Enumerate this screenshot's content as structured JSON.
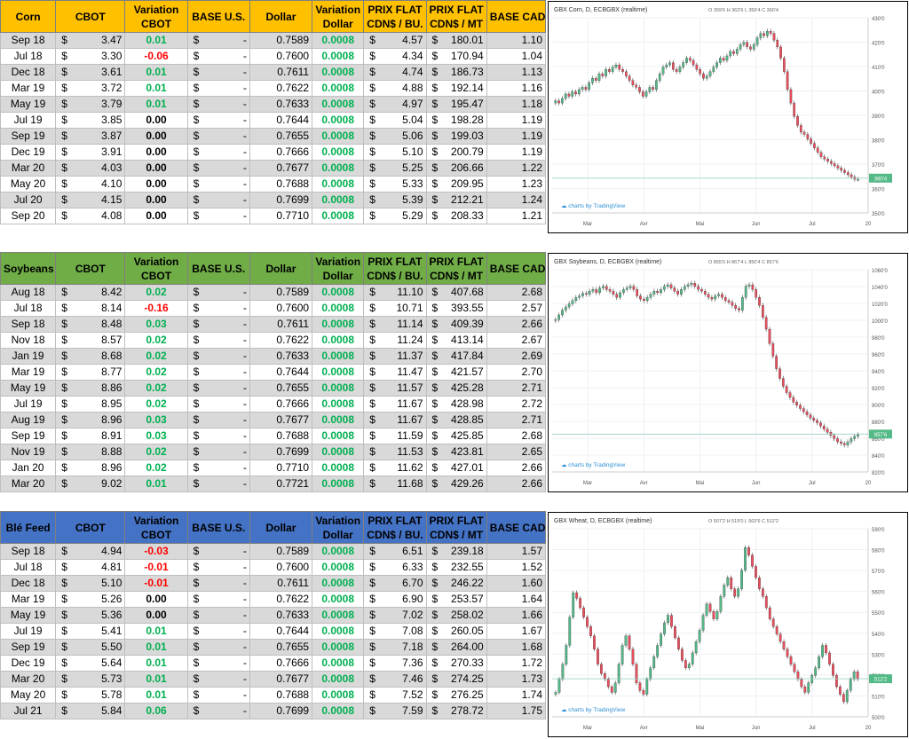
{
  "columns": {
    "cbot": "CBOT",
    "variation_cbot": [
      "Variation",
      "CBOT"
    ],
    "base_us": "BASE U.S.",
    "dollar": "Dollar",
    "variation_dollar": [
      "Variation",
      "Dollar"
    ],
    "prix_flat_bu": [
      "PRIX FLAT",
      "CDN$ / BU."
    ],
    "prix_flat_mt": [
      "PRIX FLAT",
      "CDN$ / MT"
    ],
    "base_cad": "BASE CAD"
  },
  "currency_symbol": "$",
  "dash": "-",
  "sections": [
    {
      "commodity": "Corn",
      "header_color": "#ffc000",
      "rows": [
        [
          "Sep 18",
          "3.47",
          "0.01",
          "0.7589",
          "0.0008",
          "4.57",
          "180.01",
          "1.10"
        ],
        [
          "Jul 18",
          "3.30",
          "-0.06",
          "0.7600",
          "0.0008",
          "4.34",
          "170.94",
          "1.04"
        ],
        [
          "Dec 18",
          "3.61",
          "0.01",
          "0.7611",
          "0.0008",
          "4.74",
          "186.73",
          "1.13"
        ],
        [
          "Mar 19",
          "3.72",
          "0.01",
          "0.7622",
          "0.0008",
          "4.88",
          "192.14",
          "1.16"
        ],
        [
          "May 19",
          "3.79",
          "0.01",
          "0.7633",
          "0.0008",
          "4.97",
          "195.47",
          "1.18"
        ],
        [
          "Jul 19",
          "3.85",
          "0.00",
          "0.7644",
          "0.0008",
          "5.04",
          "198.28",
          "1.19"
        ],
        [
          "Sep 19",
          "3.87",
          "0.00",
          "0.7655",
          "0.0008",
          "5.06",
          "199.03",
          "1.19"
        ],
        [
          "Dec 19",
          "3.91",
          "0.00",
          "0.7666",
          "0.0008",
          "5.10",
          "200.79",
          "1.19"
        ],
        [
          "Mar 20",
          "4.03",
          "0.00",
          "0.7677",
          "0.0008",
          "5.25",
          "206.66",
          "1.22"
        ],
        [
          "May 20",
          "4.10",
          "0.00",
          "0.7688",
          "0.0008",
          "5.33",
          "209.95",
          "1.23"
        ],
        [
          "Jul 20",
          "4.15",
          "0.00",
          "0.7699",
          "0.0008",
          "5.39",
          "212.21",
          "1.24"
        ],
        [
          "Sep 20",
          "4.08",
          "0.00",
          "0.7710",
          "0.0008",
          "5.29",
          "208.33",
          "1.21"
        ]
      ],
      "chart": {
        "title": "GBX Corn, D, ECBGBX (realtime)",
        "ohlc": "O 359'6 H 362'6 L 359'4 C 360'4",
        "y_ticks": [
          "430'0",
          "420'0",
          "410'0",
          "400'0",
          "390'0",
          "380'0",
          "370'0",
          "360'0",
          "350'0"
        ],
        "last_label": "360'4",
        "x_ticks": [
          "Mar",
          "Avr",
          "Mai",
          "Jun",
          "Jul",
          "20"
        ],
        "watermark": "charts by TradingView",
        "ylim": [
          345,
          432
        ],
        "last": 360.5,
        "closes": [
          395,
          394,
          396,
          398,
          397,
          399,
          398,
          400,
          401,
          400,
          403,
          405,
          404,
          407,
          406,
          409,
          408,
          410,
          411,
          409,
          408,
          406,
          404,
          402,
          401,
          399,
          397,
          399,
          401,
          400,
          404,
          407,
          410,
          411,
          412,
          409,
          408,
          410,
          412,
          414,
          413,
          411,
          409,
          407,
          405,
          406,
          408,
          410,
          412,
          414,
          413,
          415,
          417,
          416,
          418,
          420,
          421,
          419,
          418,
          420,
          423,
          425,
          424,
          426,
          425,
          422,
          419,
          414,
          408,
          400,
          394,
          388,
          384,
          381,
          380,
          378,
          376,
          374,
          372,
          370,
          369,
          368,
          367,
          366,
          365,
          364,
          363,
          362,
          361,
          360,
          360
        ]
      }
    },
    {
      "commodity": "Soybeans",
      "header_color": "#70ad47",
      "rows": [
        [
          "Aug 18",
          "8.42",
          "0.02",
          "0.7589",
          "0.0008",
          "11.10",
          "407.68",
          "2.68"
        ],
        [
          "Jul 18",
          "8.14",
          "-0.16",
          "0.7600",
          "0.0008",
          "10.71",
          "393.55",
          "2.57"
        ],
        [
          "Sep 18",
          "8.48",
          "0.03",
          "0.7611",
          "0.0008",
          "11.14",
          "409.39",
          "2.66"
        ],
        [
          "Nov 18",
          "8.57",
          "0.02",
          "0.7622",
          "0.0008",
          "11.24",
          "413.14",
          "2.67"
        ],
        [
          "Jan 19",
          "8.68",
          "0.02",
          "0.7633",
          "0.0008",
          "11.37",
          "417.84",
          "2.69"
        ],
        [
          "Mar 19",
          "8.77",
          "0.02",
          "0.7644",
          "0.0008",
          "11.47",
          "421.57",
          "2.70"
        ],
        [
          "May 19",
          "8.86",
          "0.02",
          "0.7655",
          "0.0008",
          "11.57",
          "425.28",
          "2.71"
        ],
        [
          "Jul 19",
          "8.95",
          "0.02",
          "0.7666",
          "0.0008",
          "11.67",
          "428.98",
          "2.72"
        ],
        [
          "Aug 19",
          "8.96",
          "0.03",
          "0.7677",
          "0.0008",
          "11.67",
          "428.85",
          "2.71"
        ],
        [
          "Sep 19",
          "8.91",
          "0.03",
          "0.7688",
          "0.0008",
          "11.59",
          "425.85",
          "2.68"
        ],
        [
          "Nov 19",
          "8.88",
          "0.02",
          "0.7699",
          "0.0008",
          "11.53",
          "423.81",
          "2.65"
        ],
        [
          "Jan 20",
          "8.96",
          "0.02",
          "0.7710",
          "0.0008",
          "11.62",
          "427.01",
          "2.66"
        ],
        [
          "Mar 20",
          "9.02",
          "0.01",
          "0.7721",
          "0.0008",
          "11.68",
          "429.26",
          "2.66"
        ]
      ],
      "chart": {
        "title": "GBX Soybeans, D, ECBGBX (realtime)",
        "ohlc": "O 855'0 H 867'4 L 850'4 C 857'6",
        "y_ticks": [
          "1060'0",
          "1040'0",
          "1020'0",
          "1000'0",
          "980'0",
          "960'0",
          "940'0",
          "920'0",
          "900'0",
          "880'0",
          "860'0",
          "840'0",
          "820'0"
        ],
        "last_label": "857'6",
        "x_ticks": [
          "Mar",
          "Avr",
          "Mai",
          "Jun",
          "Jul",
          "20"
        ],
        "watermark": "charts by TradingView",
        "ylim": [
          810,
          1065
        ],
        "last": 857.75,
        "closes": [
          1002,
          1008,
          1014,
          1018,
          1022,
          1026,
          1030,
          1032,
          1035,
          1034,
          1038,
          1040,
          1036,
          1042,
          1044,
          1040,
          1038,
          1034,
          1030,
          1036,
          1040,
          1042,
          1044,
          1040,
          1032,
          1028,
          1026,
          1030,
          1034,
          1038,
          1036,
          1040,
          1044,
          1046,
          1042,
          1038,
          1034,
          1040,
          1044,
          1046,
          1048,
          1044,
          1040,
          1038,
          1034,
          1030,
          1028,
          1032,
          1034,
          1030,
          1026,
          1024,
          1020,
          1016,
          1014,
          1030,
          1044,
          1046,
          1040,
          1030,
          1020,
          1005,
          990,
          972,
          956,
          940,
          928,
          918,
          910,
          904,
          898,
          894,
          890,
          886,
          882,
          878,
          875,
          872,
          868,
          864,
          860,
          856,
          852,
          848,
          846,
          844,
          848,
          852,
          855,
          857
        ]
      }
    },
    {
      "commodity": "Blé Feed",
      "header_color": "#4472c4",
      "rows": [
        [
          "Sep 18",
          "4.94",
          "-0.03",
          "0.7589",
          "0.0008",
          "6.51",
          "239.18",
          "1.57"
        ],
        [
          "Jul 18",
          "4.81",
          "-0.01",
          "0.7600",
          "0.0008",
          "6.33",
          "232.55",
          "1.52"
        ],
        [
          "Dec 18",
          "5.10",
          "-0.01",
          "0.7611",
          "0.0008",
          "6.70",
          "246.22",
          "1.60"
        ],
        [
          "Mar 19",
          "5.26",
          "0.00",
          "0.7622",
          "0.0008",
          "6.90",
          "253.57",
          "1.64"
        ],
        [
          "May 19",
          "5.36",
          "0.00",
          "0.7633",
          "0.0008",
          "7.02",
          "258.02",
          "1.66"
        ],
        [
          "Jul 19",
          "5.41",
          "0.01",
          "0.7644",
          "0.0008",
          "7.08",
          "260.05",
          "1.67"
        ],
        [
          "Sep 19",
          "5.50",
          "0.01",
          "0.7655",
          "0.0008",
          "7.18",
          "264.00",
          "1.68"
        ],
        [
          "Dec 19",
          "5.64",
          "0.01",
          "0.7666",
          "0.0008",
          "7.36",
          "270.33",
          "1.72"
        ],
        [
          "Mar 20",
          "5.73",
          "0.01",
          "0.7677",
          "0.0008",
          "7.46",
          "274.25",
          "1.73"
        ],
        [
          "May 20",
          "5.78",
          "0.01",
          "0.7688",
          "0.0008",
          "7.52",
          "276.25",
          "1.74"
        ],
        [
          "Jul 21",
          "5.84",
          "0.06",
          "0.7699",
          "0.0008",
          "7.59",
          "278.72",
          "1.75"
        ]
      ],
      "chart": {
        "title": "GBX Wheat, D, ECBGBX (realtime)",
        "ohlc": "O 507'2 H 519'0 L 502'6 C 512'2",
        "y_ticks": [
          "590'0",
          "580'0",
          "570'0",
          "560'0",
          "550'0",
          "540'0",
          "530'0",
          "520'0",
          "510'0",
          "500'0"
        ],
        "last_label": "512'2",
        "x_ticks": [
          "Mar",
          "Avr",
          "Mai",
          "Jun",
          "Jul",
          "20"
        ],
        "watermark": "charts by TradingView",
        "ylim": [
          492,
          592
        ],
        "last": 512.25,
        "closes": [
          505,
          512,
          520,
          530,
          545,
          558,
          555,
          550,
          545,
          540,
          535,
          528,
          520,
          515,
          512,
          508,
          505,
          510,
          520,
          530,
          535,
          528,
          520,
          510,
          506,
          504,
          512,
          518,
          524,
          530,
          536,
          542,
          546,
          540,
          534,
          528,
          522,
          518,
          520,
          526,
          532,
          538,
          546,
          552,
          548,
          544,
          548,
          556,
          562,
          566,
          560,
          556,
          560,
          570,
          582,
          578,
          572,
          566,
          560,
          556,
          550,
          544,
          540,
          536,
          532,
          528,
          524,
          520,
          516,
          512,
          508,
          505,
          510,
          514,
          518,
          524,
          530,
          526,
          520,
          514,
          508,
          504,
          500,
          506,
          512,
          516,
          512
        ]
      }
    }
  ]
}
